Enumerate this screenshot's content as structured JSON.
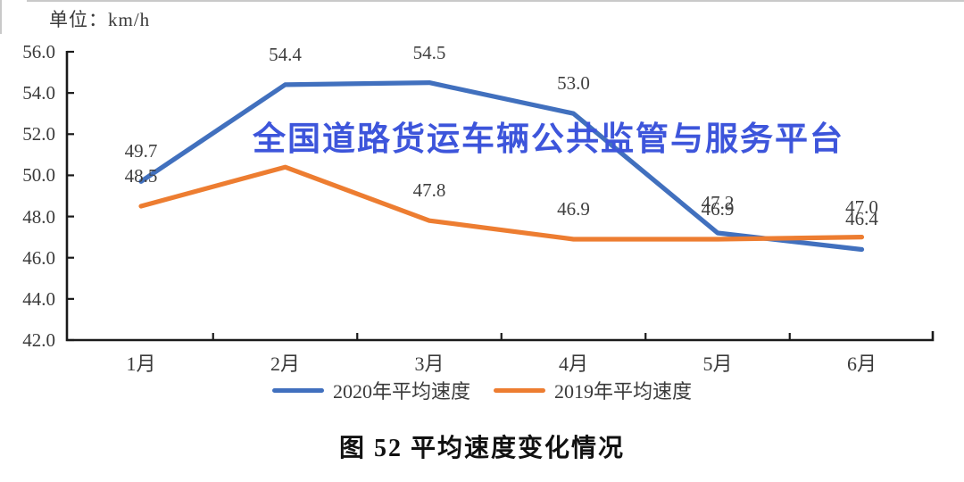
{
  "page": {
    "unit_label": "单位：km/h",
    "watermark": "全国道路货运车辆公共监管与服务平台",
    "caption": "图 52 平均速度变化情况"
  },
  "chart_data": {
    "type": "line",
    "title": "图 52 平均速度变化情况",
    "ylabel": "单位：km/h",
    "categories": [
      "1月",
      "2月",
      "3月",
      "4月",
      "5月",
      "6月"
    ],
    "series": [
      {
        "name": "2020年平均速度",
        "color": "#4170be",
        "values": [
          49.7,
          54.4,
          54.5,
          53.0,
          47.2,
          46.4
        ],
        "labels": [
          "49.7",
          "54.4",
          "54.5",
          "53.0",
          "47.2",
          "46.4"
        ]
      },
      {
        "name": "2019年平均速度",
        "color": "#ed7d31",
        "values": [
          48.5,
          50.4,
          47.8,
          46.9,
          46.9,
          47.0
        ],
        "labels": [
          "48.5",
          "",
          "47.8",
          "46.9",
          "46.9",
          "47.0"
        ]
      }
    ],
    "ylim": [
      42.0,
      56.0
    ],
    "ytick_step": 2.0,
    "yticks": [
      "56.0",
      "54.0",
      "52.0",
      "50.0",
      "48.0",
      "46.0",
      "44.0",
      "42.0"
    ],
    "grid": false,
    "legend_position": "bottom",
    "axis_color": "#1a1a1a",
    "watermark_color": "#3d55db"
  }
}
